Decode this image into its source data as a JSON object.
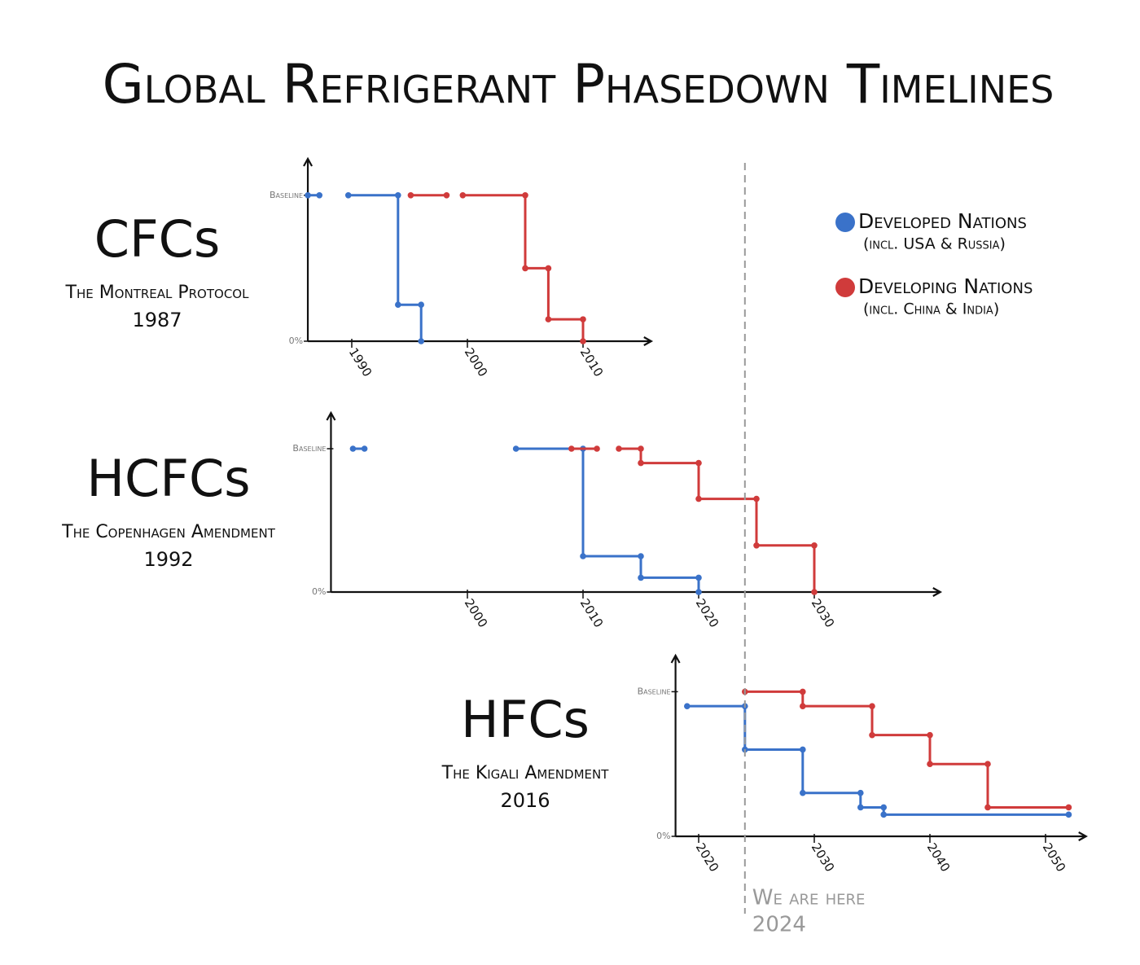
{
  "title": "Global Refrigerant Phasedown Timelines",
  "legend": [
    {
      "name": "Developed Nations",
      "detail": "(incl. USA & Russia)",
      "color": "#3a72c9"
    },
    {
      "name": "Developing Nations",
      "detail": "(incl. China & India)",
      "color": "#d03b3b"
    }
  ],
  "annotation": {
    "text": "We are here",
    "x": 2024
  },
  "chart_data": [
    {
      "type": "line",
      "title": "CFCs",
      "subtitle": "The Montreal Protocol",
      "year": 1987,
      "xlim": [
        1986.2,
        2015.9
      ],
      "xticks": [
        1990,
        2000,
        2010
      ],
      "ylim": [
        0,
        125
      ],
      "yticks": [
        {
          "value": 100,
          "label": "Baseline"
        },
        {
          "value": 0,
          "label": "0%"
        }
      ],
      "series": [
        {
          "color": "#3a72c9",
          "x": [
            1986.2,
            1987.2,
            1988,
            1989.7,
            1994,
            1994,
            1996,
            1996
          ],
          "values": [
            100,
            100,
            null,
            100,
            100,
            25,
            25,
            0
          ]
        },
        {
          "color": "#d03b3b",
          "x": [
            1995.1,
            1998.2,
            1999,
            1999.6,
            2005,
            2005,
            2007,
            2007,
            2010,
            2010
          ],
          "values": [
            100,
            100,
            null,
            100,
            100,
            50,
            50,
            15,
            15,
            0
          ]
        }
      ]
    },
    {
      "type": "line",
      "title": "HCFCs",
      "subtitle": "The Copenhagen Amendment",
      "year": 1992,
      "xlim": [
        1988.2,
        2040.9
      ],
      "xticks": [
        2000,
        2010,
        2020,
        2030
      ],
      "ylim": [
        0,
        125
      ],
      "yticks": [
        {
          "value": 100,
          "label": "Baseline"
        },
        {
          "value": 0,
          "label": "0%"
        }
      ],
      "series": [
        {
          "color": "#3a72c9",
          "x": [
            1990.1,
            1991.1,
            1998,
            2004.2,
            2010,
            2010,
            2015,
            2015,
            2020,
            2020
          ],
          "values": [
            100,
            100,
            null,
            100,
            100,
            25,
            25,
            10,
            10,
            0
          ]
        },
        {
          "color": "#d03b3b",
          "x": [
            2009,
            2011.2,
            2012,
            2013.1,
            2015,
            2015,
            2020,
            2020,
            2025,
            2025,
            2030,
            2030
          ],
          "values": [
            100,
            100,
            null,
            100,
            100,
            90,
            90,
            65,
            65,
            32.5,
            32.5,
            0
          ]
        }
      ]
    },
    {
      "type": "line",
      "title": "HFCs",
      "subtitle": "The Kigali Amendment",
      "year": 2016,
      "xlim": [
        2018,
        2053.5
      ],
      "xticks": [
        2020,
        2030,
        2040,
        2050
      ],
      "ylim": [
        0,
        125
      ],
      "yticks": [
        {
          "value": 100,
          "label": "Baseline"
        },
        {
          "value": 0,
          "label": "0%"
        }
      ],
      "series": [
        {
          "color": "#3a72c9",
          "x": [
            2019,
            2024,
            2024,
            2029,
            2029,
            2034,
            2034,
            2036,
            2036,
            2052
          ],
          "values": [
            90,
            90,
            60,
            60,
            30,
            30,
            20,
            20,
            15,
            15
          ]
        },
        {
          "color": "#d03b3b",
          "x": [
            2024,
            2029,
            2029,
            2035,
            2035,
            2040,
            2040,
            2045,
            2045,
            2052
          ],
          "values": [
            100,
            100,
            90,
            90,
            70,
            70,
            50,
            50,
            20,
            20
          ]
        }
      ]
    }
  ]
}
